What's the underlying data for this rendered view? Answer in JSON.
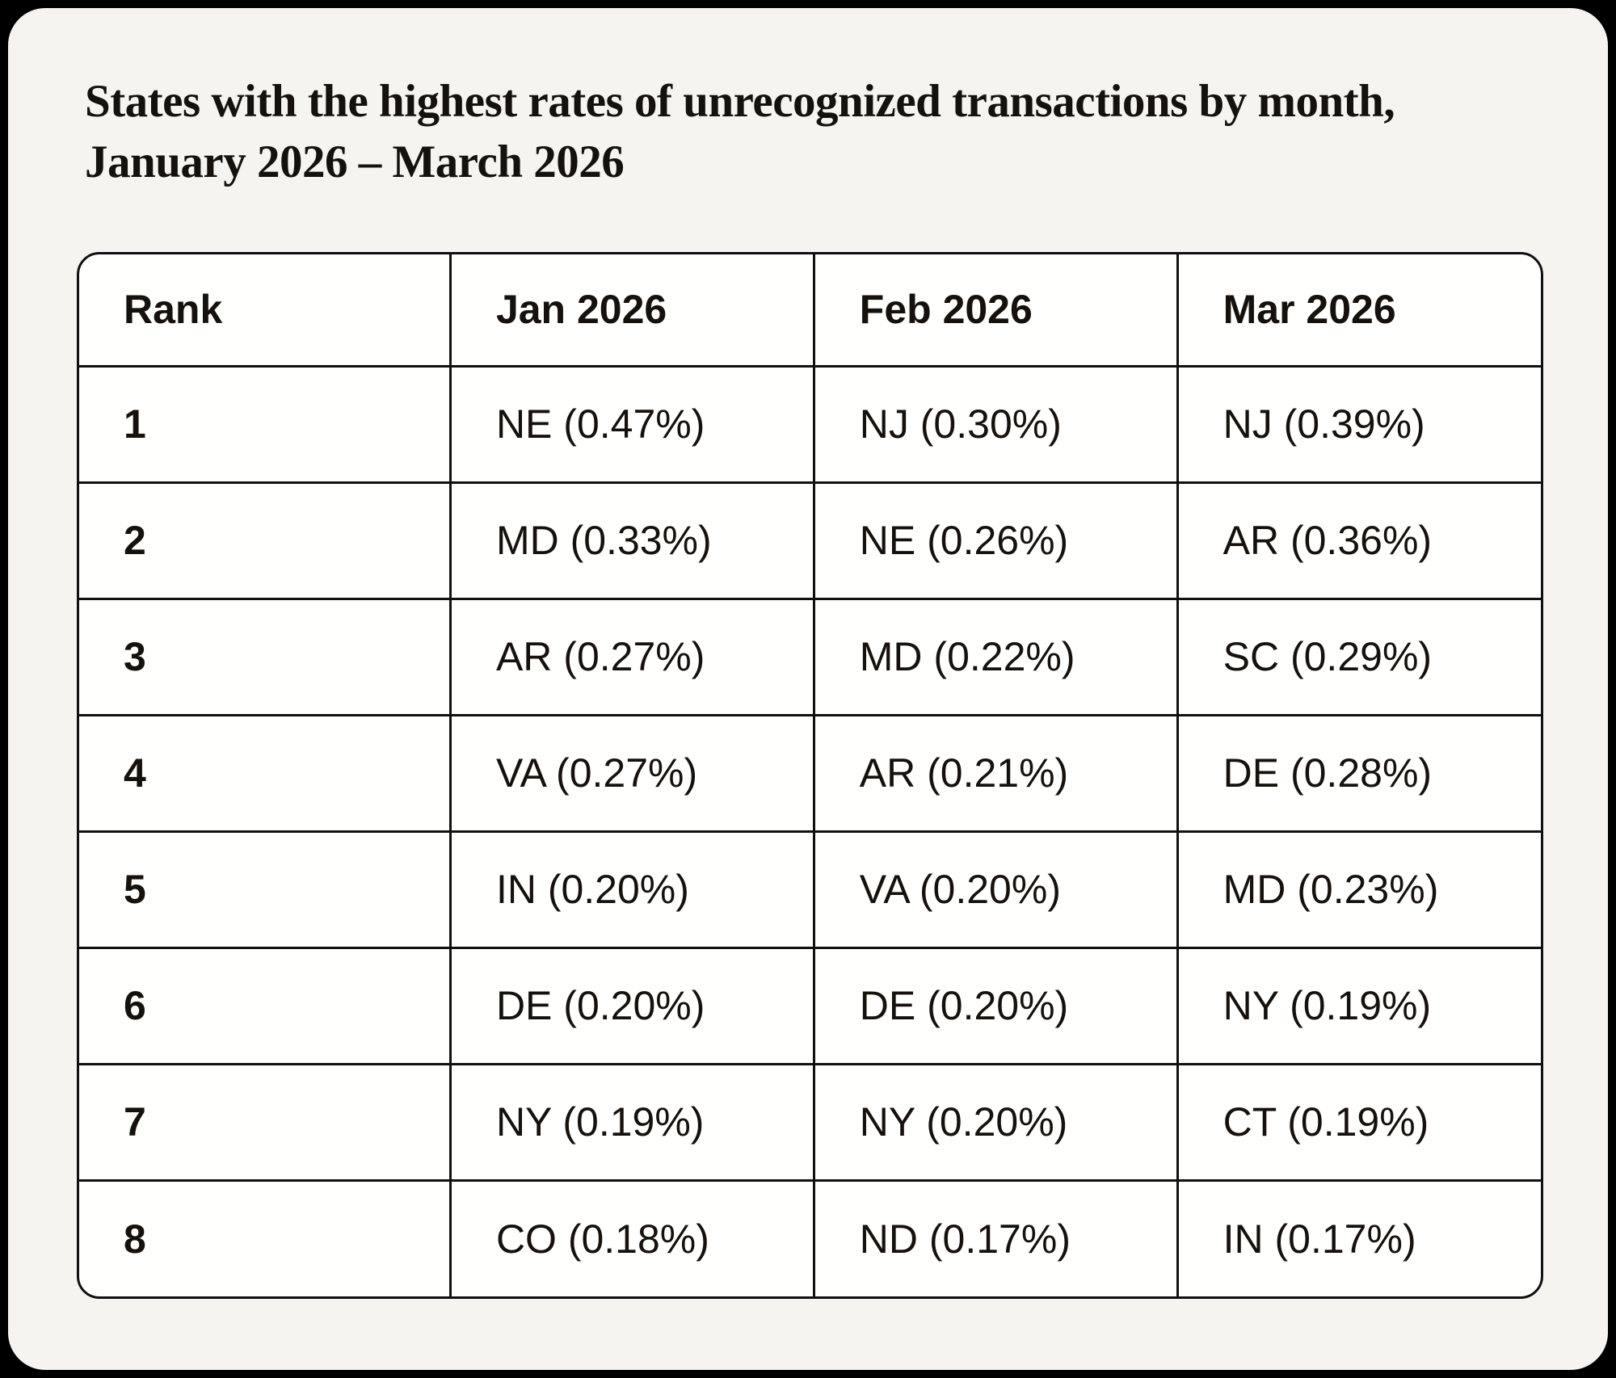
{
  "title": "States with the highest rates of unrecognized transactions by month, January 2026 – March 2026",
  "colors": {
    "page_background": "#000000",
    "card_background": "#f5f4f1",
    "table_background": "#fffffe",
    "border": "#101010",
    "text": "#15120e"
  },
  "chart_data": {
    "type": "table",
    "title": "States with the highest rates of unrecognized transactions by month, January 2026 – March 2026",
    "columns": [
      "Rank",
      "Jan 2026",
      "Feb 2026",
      "Mar 2026"
    ],
    "rows": [
      [
        "1",
        "NE (0.47%)",
        "NJ (0.30%)",
        "NJ (0.39%)"
      ],
      [
        "2",
        "MD (0.33%)",
        "NE (0.26%)",
        "AR (0.36%)"
      ],
      [
        "3",
        "AR (0.27%)",
        "MD (0.22%)",
        "SC (0.29%)"
      ],
      [
        "4",
        "VA (0.27%)",
        "AR (0.21%)",
        "DE (0.28%)"
      ],
      [
        "5",
        "IN (0.20%)",
        "VA (0.20%)",
        "MD (0.23%)"
      ],
      [
        "6",
        "DE (0.20%)",
        "DE (0.20%)",
        "NY (0.19%)"
      ],
      [
        "7",
        "NY (0.19%)",
        "NY (0.20%)",
        "CT (0.19%)"
      ],
      [
        "8",
        "CO (0.18%)",
        "ND (0.17%)",
        "IN (0.17%)"
      ]
    ]
  }
}
